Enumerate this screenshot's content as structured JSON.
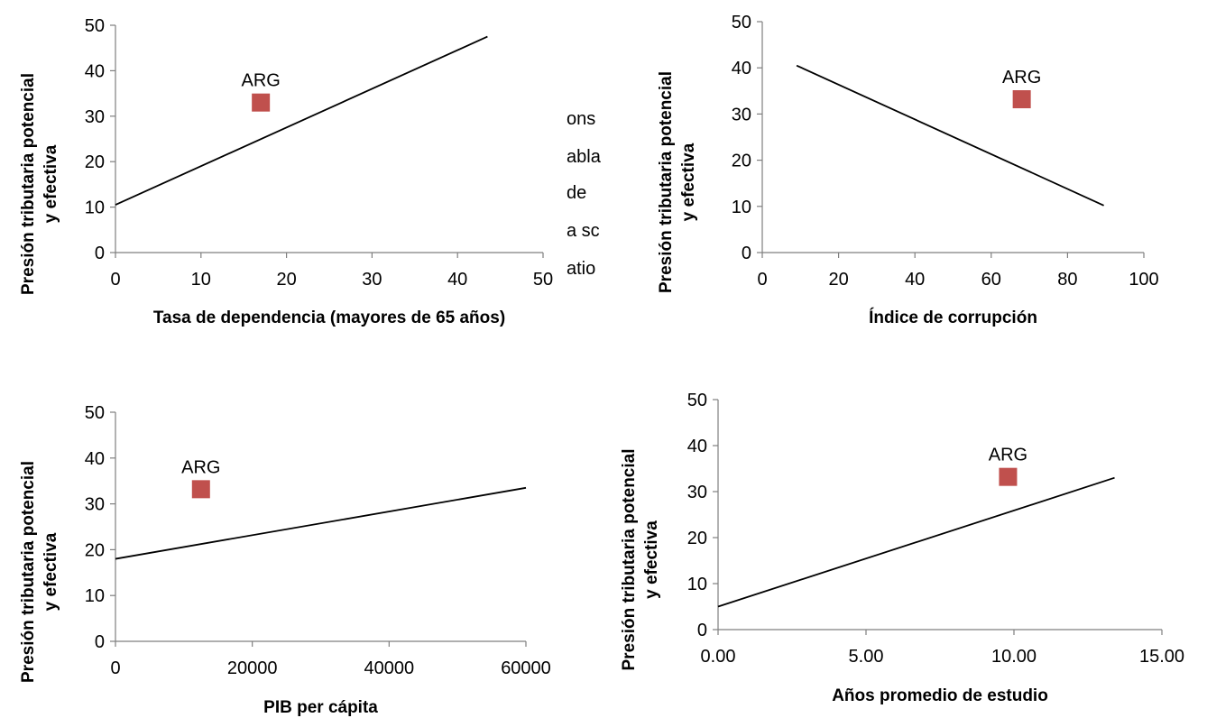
{
  "background_fragments": [
    "ons",
    "abla",
    "de",
    "a sc",
    "atio"
  ],
  "chart_data": [
    {
      "type": "scatter",
      "xlabel": "Tasa de dependencia (mayores de 65 años)",
      "ylabel_lines": [
        "Presión tributaria potencial",
        "y efectiva"
      ],
      "xlim": [
        0,
        50
      ],
      "ylim": [
        0,
        50
      ],
      "x_ticks": [
        0,
        10,
        20,
        30,
        40,
        50
      ],
      "x_tick_labels": [
        "0",
        "10",
        "20",
        "30",
        "40",
        "50"
      ],
      "y_ticks": [
        0,
        10,
        20,
        30,
        40,
        50
      ],
      "y_tick_labels": [
        "0",
        "10",
        "20",
        "30",
        "40",
        "50"
      ],
      "trend_line": {
        "x": [
          0,
          43.5
        ],
        "y": [
          10.5,
          47.5
        ]
      },
      "points": [
        {
          "label": "ARG",
          "x": 17,
          "y": 33
        }
      ]
    },
    {
      "type": "scatter",
      "xlabel": "Índice de corrupción",
      "ylabel_lines": [
        "Presión tributaria potencial",
        "y efectiva"
      ],
      "xlim": [
        0,
        100
      ],
      "ylim": [
        0,
        50
      ],
      "x_ticks": [
        0,
        20,
        40,
        60,
        80,
        100
      ],
      "x_tick_labels": [
        "0",
        "20",
        "40",
        "60",
        "80",
        "100"
      ],
      "y_ticks": [
        0,
        10,
        20,
        30,
        40,
        50
      ],
      "y_tick_labels": [
        "0",
        "10",
        "20",
        "30",
        "40",
        "50"
      ],
      "trend_line": {
        "x": [
          9,
          89.5
        ],
        "y": [
          40.5,
          10.2
        ]
      },
      "points": [
        {
          "label": "ARG",
          "x": 68,
          "y": 33.2
        }
      ]
    },
    {
      "type": "scatter",
      "xlabel": "PIB per cápita",
      "ylabel_lines": [
        "Presión tributaria potencial",
        "y efectiva"
      ],
      "xlim": [
        0,
        60000
      ],
      "ylim": [
        0,
        50
      ],
      "x_ticks": [
        0,
        20000,
        40000,
        60000
      ],
      "x_tick_labels": [
        "0",
        "20000",
        "40000",
        "60000"
      ],
      "y_ticks": [
        0,
        10,
        20,
        30,
        40,
        50
      ],
      "y_tick_labels": [
        "0",
        "10",
        "20",
        "30",
        "40",
        "50"
      ],
      "trend_line": {
        "x": [
          0,
          60000
        ],
        "y": [
          18,
          33.5
        ]
      },
      "points": [
        {
          "label": "ARG",
          "x": 12500,
          "y": 33.2
        }
      ]
    },
    {
      "type": "scatter",
      "xlabel": "Años promedio de estudio",
      "ylabel_lines": [
        "Presión tributaria potencial",
        "y efectiva"
      ],
      "xlim": [
        0,
        15
      ],
      "ylim": [
        0,
        50
      ],
      "x_ticks": [
        0,
        5,
        10,
        15
      ],
      "x_tick_labels": [
        "0.00",
        "5.00",
        "10.00",
        "15.00"
      ],
      "y_ticks": [
        0,
        10,
        20,
        30,
        40,
        50
      ],
      "y_tick_labels": [
        "0",
        "10",
        "20",
        "30",
        "40",
        "50"
      ],
      "trend_line": {
        "x": [
          0,
          13.4
        ],
        "y": [
          5,
          33
        ]
      },
      "points": [
        {
          "label": "ARG",
          "x": 9.8,
          "y": 33.2
        }
      ]
    }
  ]
}
